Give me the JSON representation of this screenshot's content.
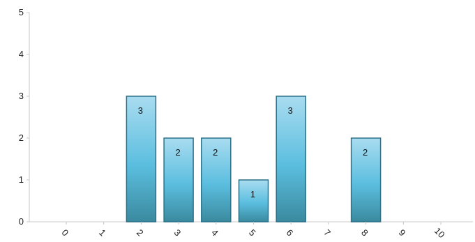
{
  "chart_data": {
    "type": "bar",
    "categories": [
      "0",
      "1",
      "2",
      "3",
      "4",
      "5",
      "6",
      "7",
      "8",
      "9",
      "10"
    ],
    "values": [
      0,
      0,
      3,
      2,
      2,
      1,
      3,
      0,
      2,
      0,
      0
    ],
    "data_labels": [
      "",
      "",
      "3",
      "2",
      "2",
      "1",
      "3",
      "",
      "2",
      "",
      ""
    ],
    "y_ticks": [
      "0",
      "1",
      "2",
      "3",
      "4",
      "5"
    ],
    "ylim": [
      0,
      5
    ],
    "title": "",
    "xlabel": "",
    "ylabel": "",
    "grid": false,
    "legend": "none",
    "colors": {
      "bar_top": "#a9dcf0",
      "bar_mid": "#5bbedf",
      "bar_bottom": "#3a8a9e",
      "bar_stroke": "#2d7189",
      "axis": "#c8c8c8"
    }
  }
}
